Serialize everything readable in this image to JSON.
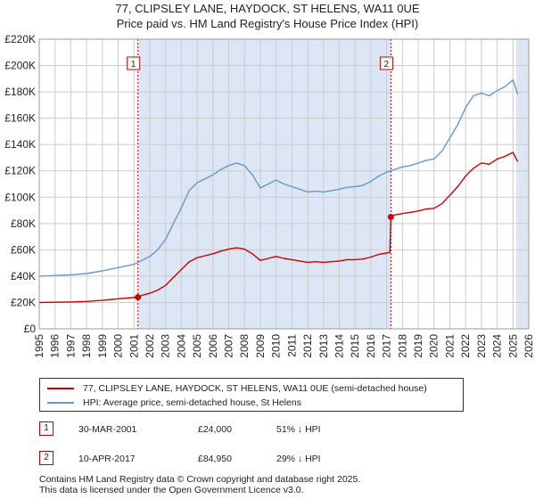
{
  "title_line1": "77, CLIPSLEY LANE, HAYDOCK, ST HELENS, WA11 0UE",
  "title_line2": "Price paid vs. HM Land Registry's House Price Index (HPI)",
  "legend": {
    "property": "77, CLIPSLEY LANE, HAYDOCK, ST HELENS, WA11 0UE (semi-detached house)",
    "hpi": "HPI: Average price, semi-detached house, St Helens"
  },
  "sales": [
    {
      "num": "1",
      "date": "30-MAR-2001",
      "price": "£24,000",
      "hpi_diff": "51% ↓ HPI"
    },
    {
      "num": "2",
      "date": "10-APR-2017",
      "price": "£84,950",
      "hpi_diff": "29% ↓ HPI"
    }
  ],
  "footer_line1": "Contains HM Land Registry data © Crown copyright and database right 2025.",
  "footer_line2": "This data is licensed under the Open Government Licence v3.0.",
  "colors": {
    "property": "#cc0000",
    "hpi": "#6699cc",
    "shade": "#dde6f5",
    "grid": "#cccccc"
  },
  "chart_data": {
    "type": "line",
    "title": "77, CLIPSLEY LANE, HAYDOCK, ST HELENS, WA11 0UE",
    "subtitle": "Price paid vs. HM Land Registry's House Price Index (HPI)",
    "xlabel": "",
    "ylabel": "",
    "xlim": [
      1995,
      2026
    ],
    "ylim": [
      0,
      220000
    ],
    "yticks": [
      0,
      20000,
      40000,
      60000,
      80000,
      100000,
      120000,
      140000,
      160000,
      180000,
      200000,
      220000
    ],
    "ytick_labels": [
      "£0",
      "£20K",
      "£40K",
      "£60K",
      "£80K",
      "£100K",
      "£120K",
      "£140K",
      "£160K",
      "£180K",
      "£200K",
      "£220K"
    ],
    "xticks": [
      1995,
      1996,
      1997,
      1998,
      1999,
      2000,
      2001,
      2002,
      2003,
      2004,
      2005,
      2006,
      2007,
      2008,
      2009,
      2010,
      2011,
      2012,
      2013,
      2014,
      2015,
      2016,
      2017,
      2018,
      2019,
      2020,
      2021,
      2022,
      2023,
      2024,
      2025,
      2026
    ],
    "shaded_spans": [
      [
        2001.25,
        2017.27
      ],
      [
        2025.2,
        2026
      ]
    ],
    "series": [
      {
        "name": "HPI: Average price, semi-detached house, St Helens",
        "color": "#6699cc",
        "x": [
          1995,
          1996,
          1997,
          1998,
          1999,
          2000,
          2001,
          2001.5,
          2002,
          2002.5,
          2003,
          2003.5,
          2004,
          2004.5,
          2005,
          2005.5,
          2006,
          2006.5,
          2007,
          2007.5,
          2008,
          2008.5,
          2009,
          2009.5,
          2010,
          2010.5,
          2011,
          2011.5,
          2012,
          2012.5,
          2013,
          2013.5,
          2014,
          2014.5,
          2015,
          2015.5,
          2016,
          2016.5,
          2017,
          2017.5,
          2018,
          2018.5,
          2019,
          2019.5,
          2020,
          2020.5,
          2021,
          2021.5,
          2022,
          2022.5,
          2023,
          2023.5,
          2024,
          2024.5,
          2025,
          2025.3
        ],
        "values": [
          40000,
          40500,
          41000,
          42000,
          44000,
          46500,
          49000,
          52000,
          55000,
          60000,
          68000,
          80000,
          92000,
          105000,
          111000,
          114000,
          117000,
          121000,
          124000,
          126000,
          124000,
          117000,
          107000,
          110000,
          113000,
          110000,
          108000,
          106000,
          104000,
          104500,
          104000,
          105000,
          106000,
          107500,
          108000,
          109000,
          112000,
          116000,
          119000,
          121000,
          123000,
          124000,
          126000,
          128000,
          129000,
          135000,
          145000,
          155000,
          168000,
          177000,
          179000,
          177000,
          181000,
          184000,
          189000,
          178000
        ]
      },
      {
        "name": "77, CLIPSLEY LANE, HAYDOCK, ST HELENS, WA11 0UE (semi-detached house)",
        "color": "#cc0000",
        "x": [
          1995,
          1996,
          1997,
          1998,
          1999,
          2000,
          2001.25,
          2001.5,
          2002,
          2002.5,
          2003,
          2003.5,
          2004,
          2004.5,
          2005,
          2005.5,
          2006,
          2006.5,
          2007,
          2007.5,
          2008,
          2008.5,
          2009,
          2009.5,
          2010,
          2010.5,
          2011,
          2011.5,
          2012,
          2012.5,
          2013,
          2013.5,
          2014,
          2014.5,
          2015,
          2015.5,
          2016,
          2016.5,
          2017.2,
          2017.27,
          2017.5,
          2018,
          2018.5,
          2019,
          2019.5,
          2020,
          2020.5,
          2021,
          2021.5,
          2022,
          2022.5,
          2023,
          2023.5,
          2024,
          2024.5,
          2025,
          2025.3
        ],
        "values": [
          20000,
          20200,
          20400,
          20800,
          21600,
          22800,
          24000,
          25400,
          27000,
          29400,
          33000,
          39000,
          45000,
          51000,
          54000,
          55500,
          57000,
          59000,
          60500,
          61500,
          60500,
          57000,
          52000,
          53500,
          55000,
          53500,
          52500,
          51500,
          50500,
          51000,
          50500,
          51000,
          51500,
          52500,
          52500,
          53000,
          54500,
          56500,
          58000,
          84950,
          86500,
          87500,
          88500,
          89500,
          91000,
          91500,
          95000,
          101500,
          108000,
          116000,
          122000,
          126000,
          125000,
          129000,
          131000,
          134000,
          127000
        ]
      }
    ],
    "annotations": [
      {
        "label": "1",
        "x": 2001.25,
        "value": 24000
      },
      {
        "label": "2",
        "x": 2017.27,
        "value": 84950
      }
    ]
  }
}
